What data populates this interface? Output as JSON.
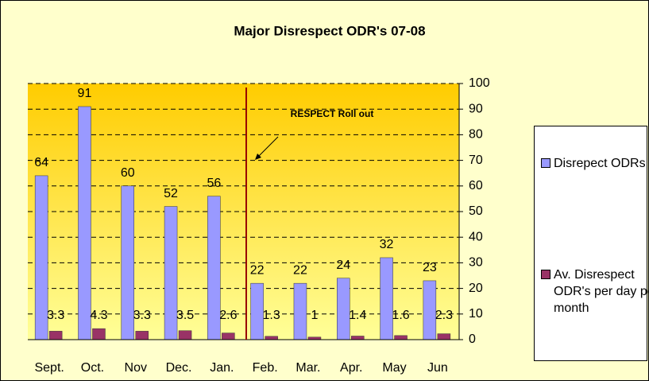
{
  "chart_data": {
    "type": "bar",
    "title": "Major Disrespect ODR's 07-08",
    "categories": [
      "Sept.",
      "Oct.",
      "Nov",
      "Dec.",
      "Jan.",
      "Feb.",
      "Mar.",
      "Apr.",
      "May",
      "Jun"
    ],
    "series": [
      {
        "name": "Disrepect ODRs",
        "color": "#9999ff",
        "values": [
          64,
          91,
          60,
          52,
          56,
          22,
          22,
          24,
          32,
          23
        ]
      },
      {
        "name": "Av. Disrespect ODR's per day per month",
        "color": "#993366",
        "values": [
          3.3,
          4.3,
          3.3,
          3.5,
          2.6,
          1.3,
          1,
          1.4,
          1.6,
          2.3
        ]
      }
    ],
    "annotation": "RESPECT Roll out",
    "ylim": [
      0,
      100
    ],
    "yticks": [
      0,
      10,
      20,
      30,
      40,
      50,
      60,
      70,
      80,
      90,
      100
    ],
    "grid": true
  }
}
